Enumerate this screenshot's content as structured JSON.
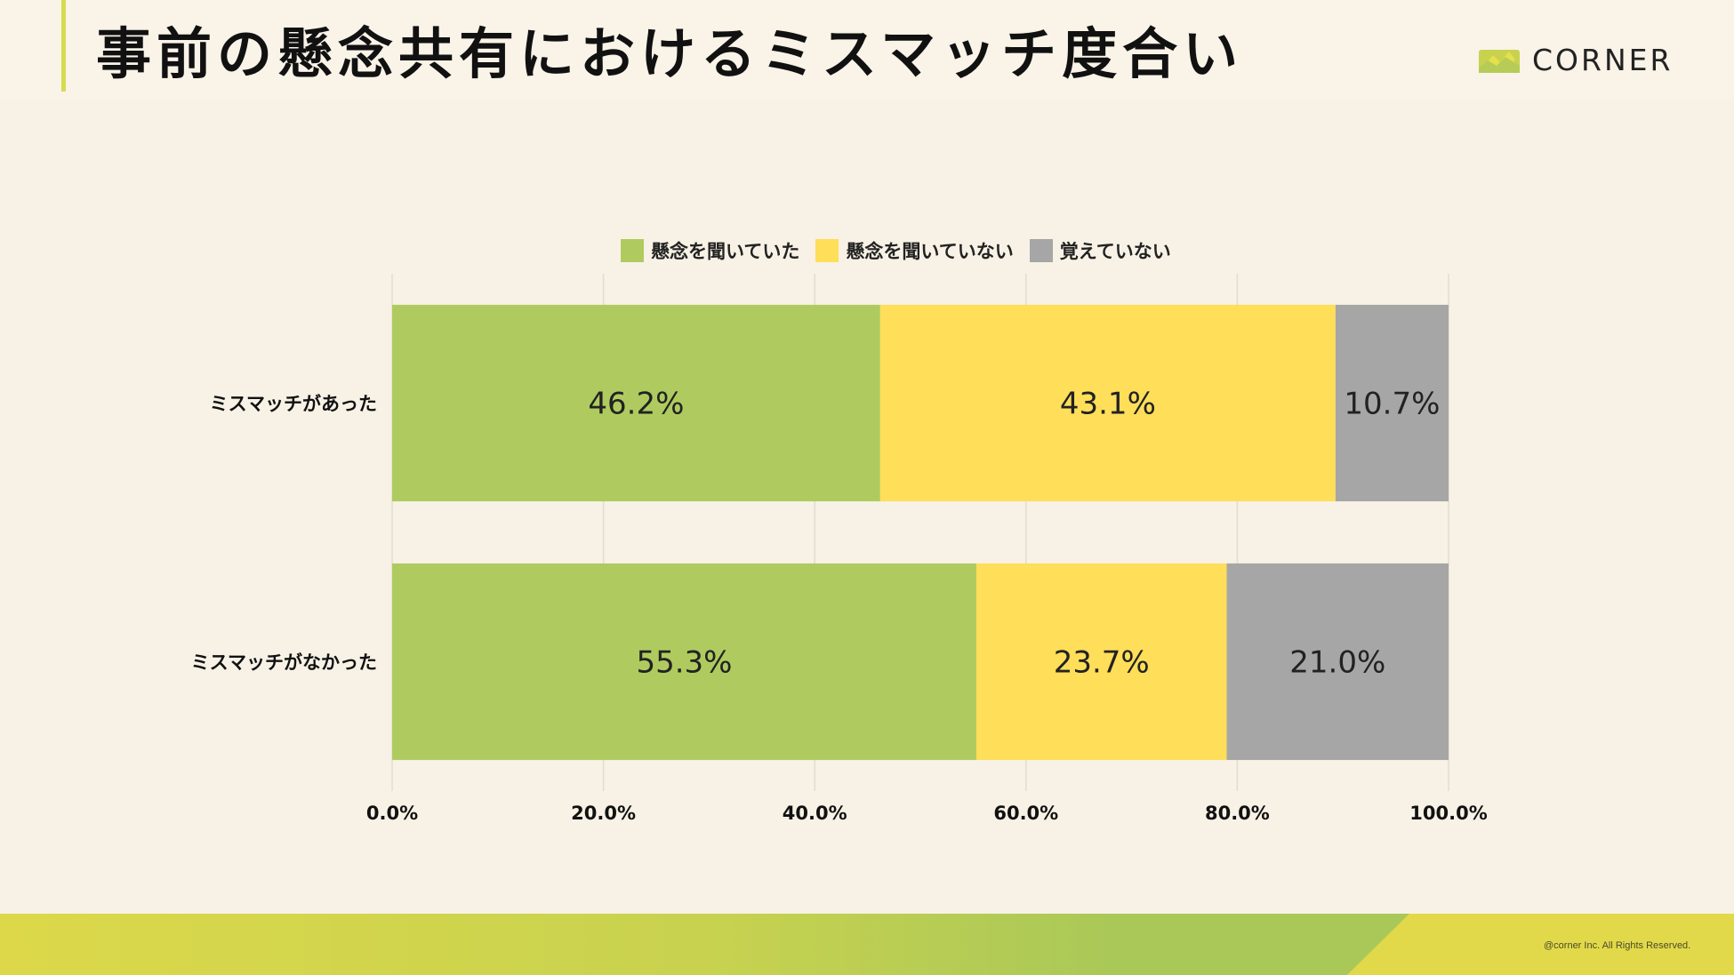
{
  "header": {
    "title": "事前の懸念共有におけるミスマッチ度合い",
    "brand": "CORNER"
  },
  "legend": [
    {
      "label": "懸念を聞いていた",
      "color": "#afcb5f"
    },
    {
      "label": "懸念を聞いていない",
      "color": "#ffde5a"
    },
    {
      "label": "覚えていない",
      "color": "#a6a6a6"
    }
  ],
  "footer": {
    "copyright": "@corner Inc. All Rights Reserved."
  },
  "chart_data": {
    "type": "bar",
    "orientation": "horizontal",
    "stacked": true,
    "categories": [
      "ミスマッチがあった",
      "ミスマッチがなかった"
    ],
    "series": [
      {
        "name": "懸念を聞いていた",
        "values": [
          46.2,
          55.3
        ],
        "labels": [
          "46.2%",
          "55.3%"
        ],
        "color": "#afcb5f"
      },
      {
        "name": "懸念を聞いていない",
        "values": [
          43.1,
          23.7
        ],
        "labels": [
          "43.1%",
          "23.7%"
        ],
        "color": "#ffde5a"
      },
      {
        "name": "覚えていない",
        "values": [
          10.7,
          21.0
        ],
        "labels": [
          "10.7%",
          "21.0%"
        ],
        "color": "#a6a6a6"
      }
    ],
    "xlim": [
      0,
      100
    ],
    "xticks": [
      "0.0%",
      "20.0%",
      "40.0%",
      "60.0%",
      "80.0%",
      "100.0%"
    ],
    "grid": true,
    "legend_position": "top"
  }
}
